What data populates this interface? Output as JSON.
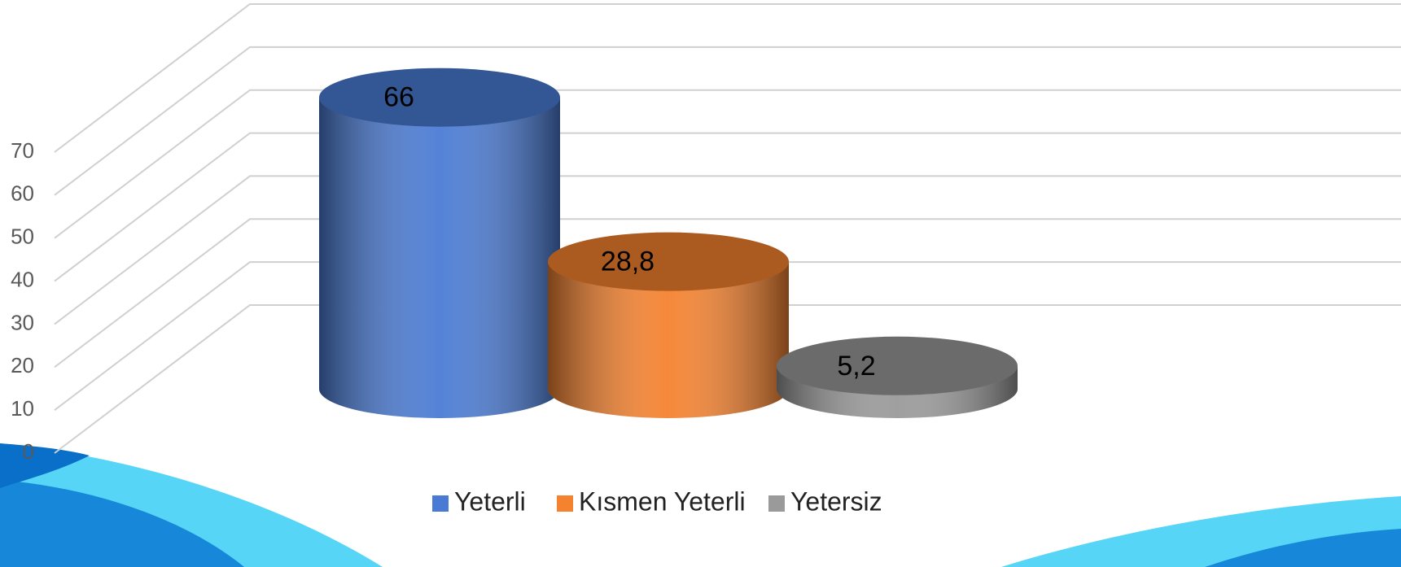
{
  "chart_data": {
    "type": "bar3d",
    "categories": [
      null
    ],
    "series": [
      {
        "name": "Yeterli",
        "color": "#4a7bd4",
        "values": [
          66
        ]
      },
      {
        "name": "Kısmen Yeterli",
        "color": "#f5822f",
        "values": [
          28.8
        ],
        "value_labels": [
          "28,8"
        ]
      },
      {
        "name": "Yetersiz",
        "color": "#9a9a9a",
        "values": [
          5.2
        ],
        "value_labels": [
          "5,2"
        ]
      }
    ],
    "ylim": [
      0,
      70
    ],
    "yticks": [
      0,
      10,
      20,
      30,
      40,
      50,
      60,
      70
    ],
    "grid": true,
    "legend": "bottom"
  }
}
